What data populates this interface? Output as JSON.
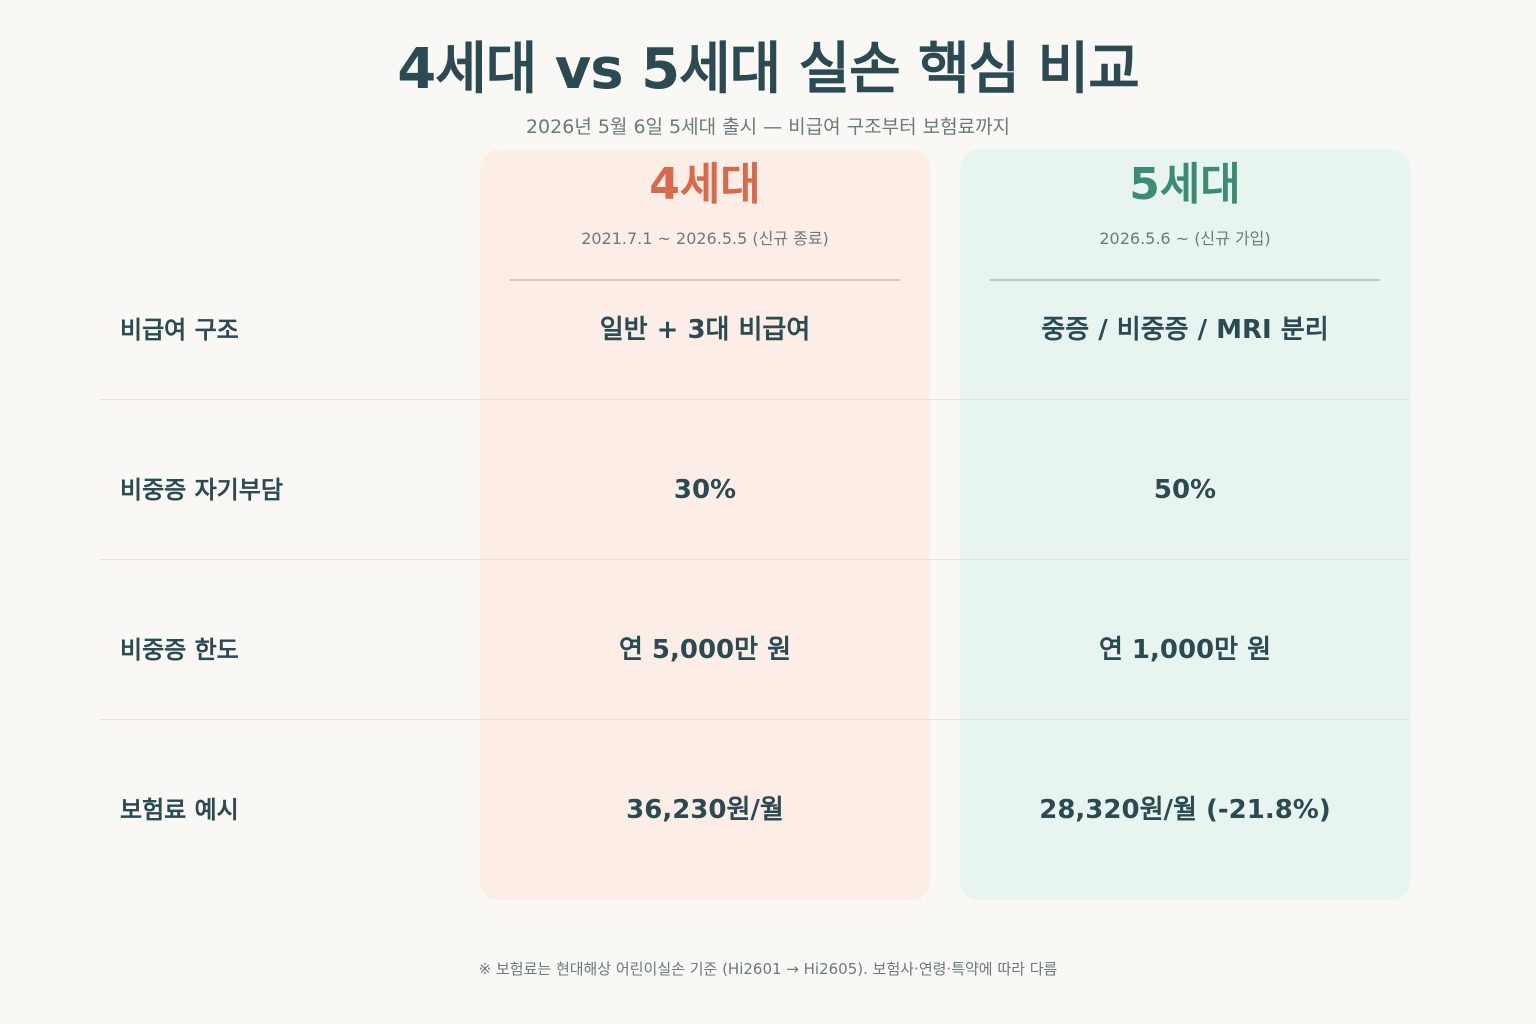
{
  "title": "4세대 vs 5세대 실손 핵심 비교",
  "subtitle": "2026년 5월 6일 5세대 출시 — 비급여 구조부터 보험료까지",
  "columns": [
    {
      "name": "4세대",
      "period": "2021.7.1 ~ 2026.5.5 (신규 종료)",
      "color": "#d9694a",
      "background": "#fcede6"
    },
    {
      "name": "5세대",
      "period": "2026.5.6 ~ (신규 가입)",
      "color": "#3d8a76",
      "background": "#e8f4ef"
    }
  ],
  "rows": [
    {
      "label": "비급여 구조",
      "gen4": "일반 + 3대 비급여",
      "gen5": "중증 / 비중증 / MRI 분리"
    },
    {
      "label": "비중증 자기부담",
      "gen4": "30%",
      "gen5": "50%"
    },
    {
      "label": "비중증 한도",
      "gen4": "연 5,000만 원",
      "gen5": "연 1,000만 원"
    },
    {
      "label": "보험료 예시",
      "gen4": "36,230원/월",
      "gen5": "28,320원/월 (-21.8%)"
    }
  ],
  "footnote": "※ 보험료는 현대해상 어린이실손 기준 (Hi2601 → Hi2605). 보험사·연령·특약에 따라 다름"
}
